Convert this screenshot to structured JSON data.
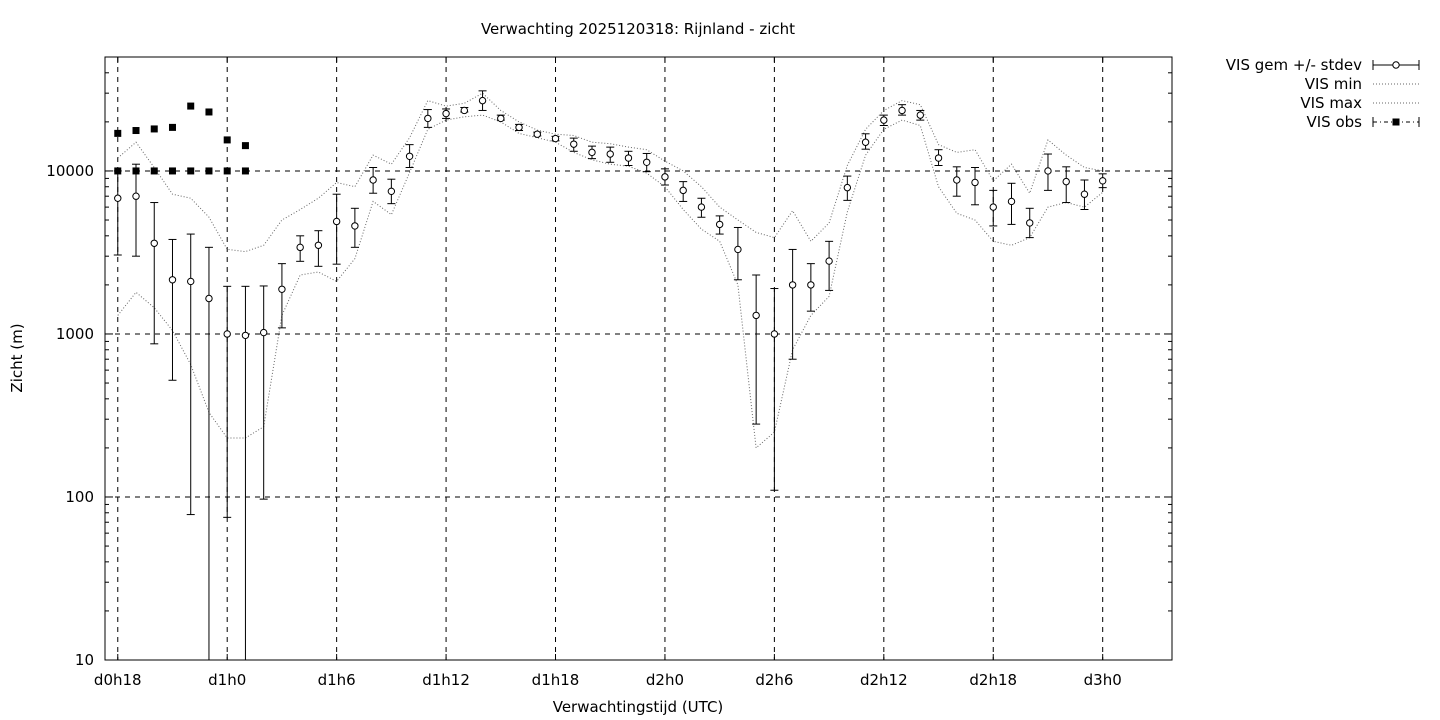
{
  "chart_data": {
    "type": "line",
    "title": "Verwachting 2025120318: Rijnland - zicht",
    "xlabel": "Verwachtingstijd (UTC)",
    "ylabel": "Zicht (m)",
    "yscale": "log",
    "ylim": [
      10,
      50000
    ],
    "xlim": [
      17.3,
      75.8
    ],
    "grid": true,
    "legend_position": "outside-top-right",
    "x_ticks": [
      {
        "x": 18,
        "label": "d0h18"
      },
      {
        "x": 24,
        "label": "d1h0"
      },
      {
        "x": 30,
        "label": "d1h6"
      },
      {
        "x": 36,
        "label": "d1h12"
      },
      {
        "x": 42,
        "label": "d1h18"
      },
      {
        "x": 48,
        "label": "d2h0"
      },
      {
        "x": 54,
        "label": "d2h6"
      },
      {
        "x": 60,
        "label": "d2h12"
      },
      {
        "x": 66,
        "label": "d2h18"
      },
      {
        "x": 72,
        "label": "d3h0"
      }
    ],
    "y_ticks": [
      {
        "y": 10,
        "label": "10"
      },
      {
        "y": 100,
        "label": "100"
      },
      {
        "y": 1000,
        "label": "1000"
      },
      {
        "y": 10000,
        "label": "10000"
      }
    ],
    "series": [
      {
        "name": "VIS gem +/- stdev",
        "style": "errorbars",
        "x": [
          18,
          19,
          20,
          21,
          22,
          23,
          24,
          25,
          26,
          27,
          28,
          29,
          30,
          31,
          32,
          33,
          34,
          35,
          36,
          37,
          38,
          39,
          40,
          41,
          42,
          43,
          44,
          45,
          46,
          47,
          48,
          49,
          50,
          51,
          52,
          53,
          54,
          55,
          56,
          57,
          58,
          59,
          60,
          61,
          62,
          63,
          64,
          65,
          66,
          67,
          68,
          69,
          70,
          71,
          72
        ],
        "y": [
          6800,
          7000,
          3600,
          2150,
          2100,
          1650,
          1000,
          980,
          1020,
          1880,
          3400,
          3500,
          4900,
          4600,
          8800,
          7500,
          12300,
          21000,
          22500,
          23500,
          27000,
          21000,
          18500,
          16800,
          15800,
          14600,
          13000,
          12700,
          12000,
          11300,
          9200,
          7600,
          6000,
          4700,
          3300,
          1300,
          1000,
          2000,
          2000,
          2800,
          7900,
          15000,
          20500,
          23500,
          22000,
          12000,
          8800,
          8500,
          6000,
          6500,
          4800,
          10000,
          8600,
          7200,
          8700
        ],
        "ylow": [
          3050,
          3000,
          870,
          520,
          78,
          10,
          75,
          10,
          97,
          1090,
          2790,
          2600,
          2680,
          3400,
          7300,
          6300,
          10500,
          18500,
          21000,
          23000,
          23500,
          20500,
          17700,
          16400,
          15300,
          13200,
          11900,
          11300,
          10800,
          9900,
          8200,
          6500,
          5200,
          4100,
          2150,
          280,
          110,
          700,
          1380,
          1850,
          6600,
          13600,
          19000,
          22000,
          20500,
          10800,
          7000,
          6200,
          4600,
          4700,
          3900,
          7600,
          6400,
          5800,
          7900
        ],
        "yhigh": [
          10000,
          11000,
          6400,
          3800,
          4100,
          3400,
          1960,
          1960,
          1970,
          2700,
          4000,
          4300,
          7200,
          5900,
          10500,
          8900,
          14500,
          23800,
          24000,
          24500,
          31000,
          22000,
          19300,
          17300,
          16300,
          15900,
          14200,
          14000,
          13200,
          12800,
          10300,
          8600,
          6800,
          5300,
          4500,
          2300,
          1900,
          3300,
          2700,
          3700,
          9300,
          16900,
          22000,
          25500,
          23500,
          13500,
          10600,
          10500,
          7600,
          8400,
          5900,
          12700,
          10600,
          8800,
          9600
        ]
      },
      {
        "name": "VIS min",
        "style": "dotted",
        "x": [
          18,
          19,
          20,
          21,
          22,
          23,
          24,
          25,
          26,
          27,
          28,
          29,
          30,
          31,
          32,
          33,
          34,
          35,
          36,
          37,
          38,
          39,
          40,
          41,
          42,
          43,
          44,
          45,
          46,
          47,
          48,
          49,
          50,
          51,
          52,
          53,
          54,
          55,
          56,
          57,
          58,
          59,
          60,
          61,
          62,
          63,
          64,
          65,
          66,
          67,
          68,
          69,
          70,
          71,
          72
        ],
        "y": [
          1300,
          1800,
          1450,
          1050,
          650,
          330,
          230,
          230,
          270,
          1300,
          2300,
          2400,
          2100,
          2900,
          6500,
          5400,
          9800,
          18000,
          20500,
          21500,
          22000,
          20000,
          17000,
          16000,
          15000,
          13000,
          11700,
          11000,
          10700,
          9700,
          8000,
          5800,
          4400,
          3700,
          2000,
          200,
          250,
          800,
          1300,
          1700,
          5600,
          12500,
          18000,
          20500,
          19000,
          8000,
          5500,
          5000,
          3700,
          3500,
          3900,
          6000,
          6400,
          6000,
          7400
        ]
      },
      {
        "name": "VIS max",
        "style": "dotted",
        "x": [
          18,
          19,
          20,
          21,
          22,
          23,
          24,
          25,
          26,
          27,
          28,
          29,
          30,
          31,
          32,
          33,
          34,
          35,
          36,
          37,
          38,
          39,
          40,
          41,
          42,
          43,
          44,
          45,
          46,
          47,
          48,
          49,
          50,
          51,
          52,
          53,
          54,
          55,
          56,
          57,
          58,
          59,
          60,
          61,
          62,
          63,
          64,
          65,
          66,
          67,
          68,
          69,
          70,
          71,
          72
        ],
        "y": [
          12000,
          15000,
          10500,
          7200,
          6800,
          5200,
          3300,
          3200,
          3500,
          5000,
          5800,
          6800,
          8500,
          8000,
          12500,
          11000,
          16000,
          27000,
          25000,
          26000,
          30000,
          23500,
          20000,
          17800,
          16800,
          16500,
          15000,
          14700,
          14000,
          13500,
          11500,
          10000,
          8000,
          6000,
          5000,
          4200,
          3900,
          5700,
          3700,
          4800,
          10800,
          18000,
          23500,
          27000,
          25500,
          14500,
          13000,
          13500,
          8700,
          11000,
          7300,
          15500,
          12500,
          10500,
          10000
        ]
      },
      {
        "name": "VIS obs",
        "style": "points",
        "x": [
          18,
          19,
          20,
          21,
          22,
          23,
          24,
          25,
          18,
          19,
          20,
          21,
          22,
          23,
          24,
          25
        ],
        "y": [
          10000,
          10000,
          10000,
          10000,
          10000,
          10000,
          10000,
          10000,
          17000,
          17700,
          18100,
          18500,
          25000,
          23000,
          15500,
          14300
        ]
      }
    ]
  }
}
